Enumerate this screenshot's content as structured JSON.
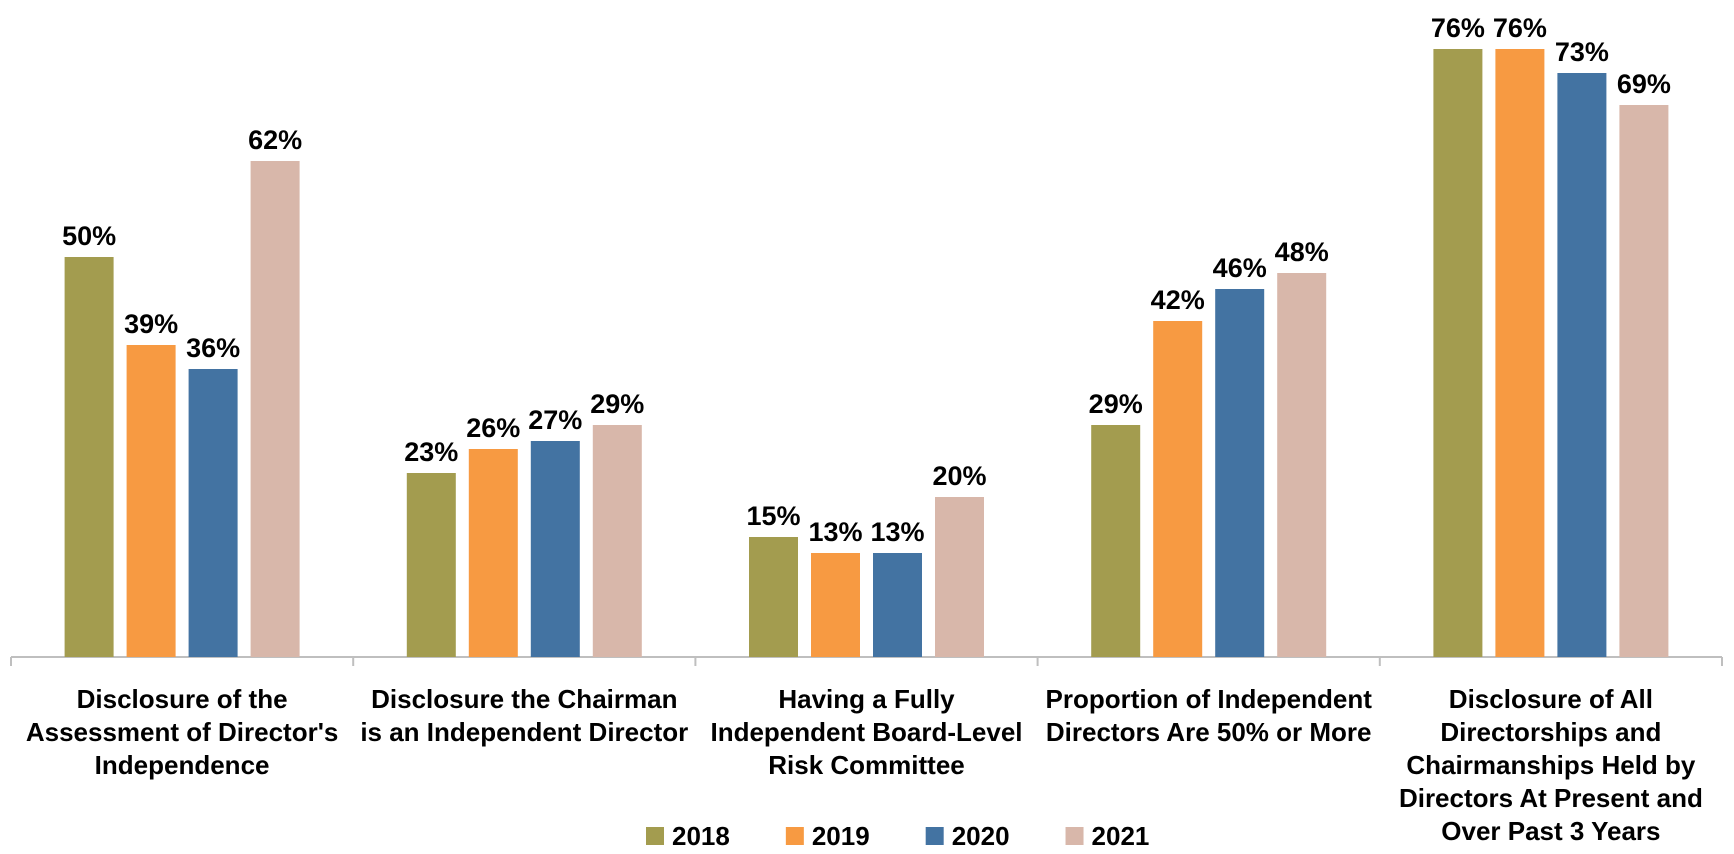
{
  "chart_data": {
    "type": "bar",
    "categories": [
      "Disclosure of the Assessment of Director's Independence",
      "Disclosure the Chairman is an Independent Director",
      "Having a Fully Independent Board-Level Risk Committee",
      "Proportion of Independent Directors Are 50% or More",
      "Disclosure of All Directorships and Chairmanships Held by Directors At Present and Over Past 3 Years"
    ],
    "series": [
      {
        "name": "2018",
        "color": "#a39c4f",
        "values": [
          50,
          23,
          15,
          29,
          76
        ],
        "value_labels": [
          "50%",
          "23%",
          "15%",
          "29%",
          "76%"
        ]
      },
      {
        "name": "2019",
        "color": "#f79a42",
        "values": [
          39,
          26,
          13,
          42,
          76
        ],
        "value_labels": [
          "39%",
          "26%",
          "13%",
          "42%",
          "76%"
        ]
      },
      {
        "name": "2020",
        "color": "#4373a2",
        "values": [
          36,
          27,
          13,
          46,
          73
        ],
        "value_labels": [
          "36%",
          "27%",
          "13%",
          "46%",
          "73%"
        ]
      },
      {
        "name": "2021",
        "color": "#d8b7aa",
        "values": [
          62,
          29,
          20,
          48,
          69
        ],
        "value_labels": [
          "62%",
          "29%",
          "20%",
          "48%",
          "69%"
        ]
      }
    ],
    "legend": "bottom"
  }
}
